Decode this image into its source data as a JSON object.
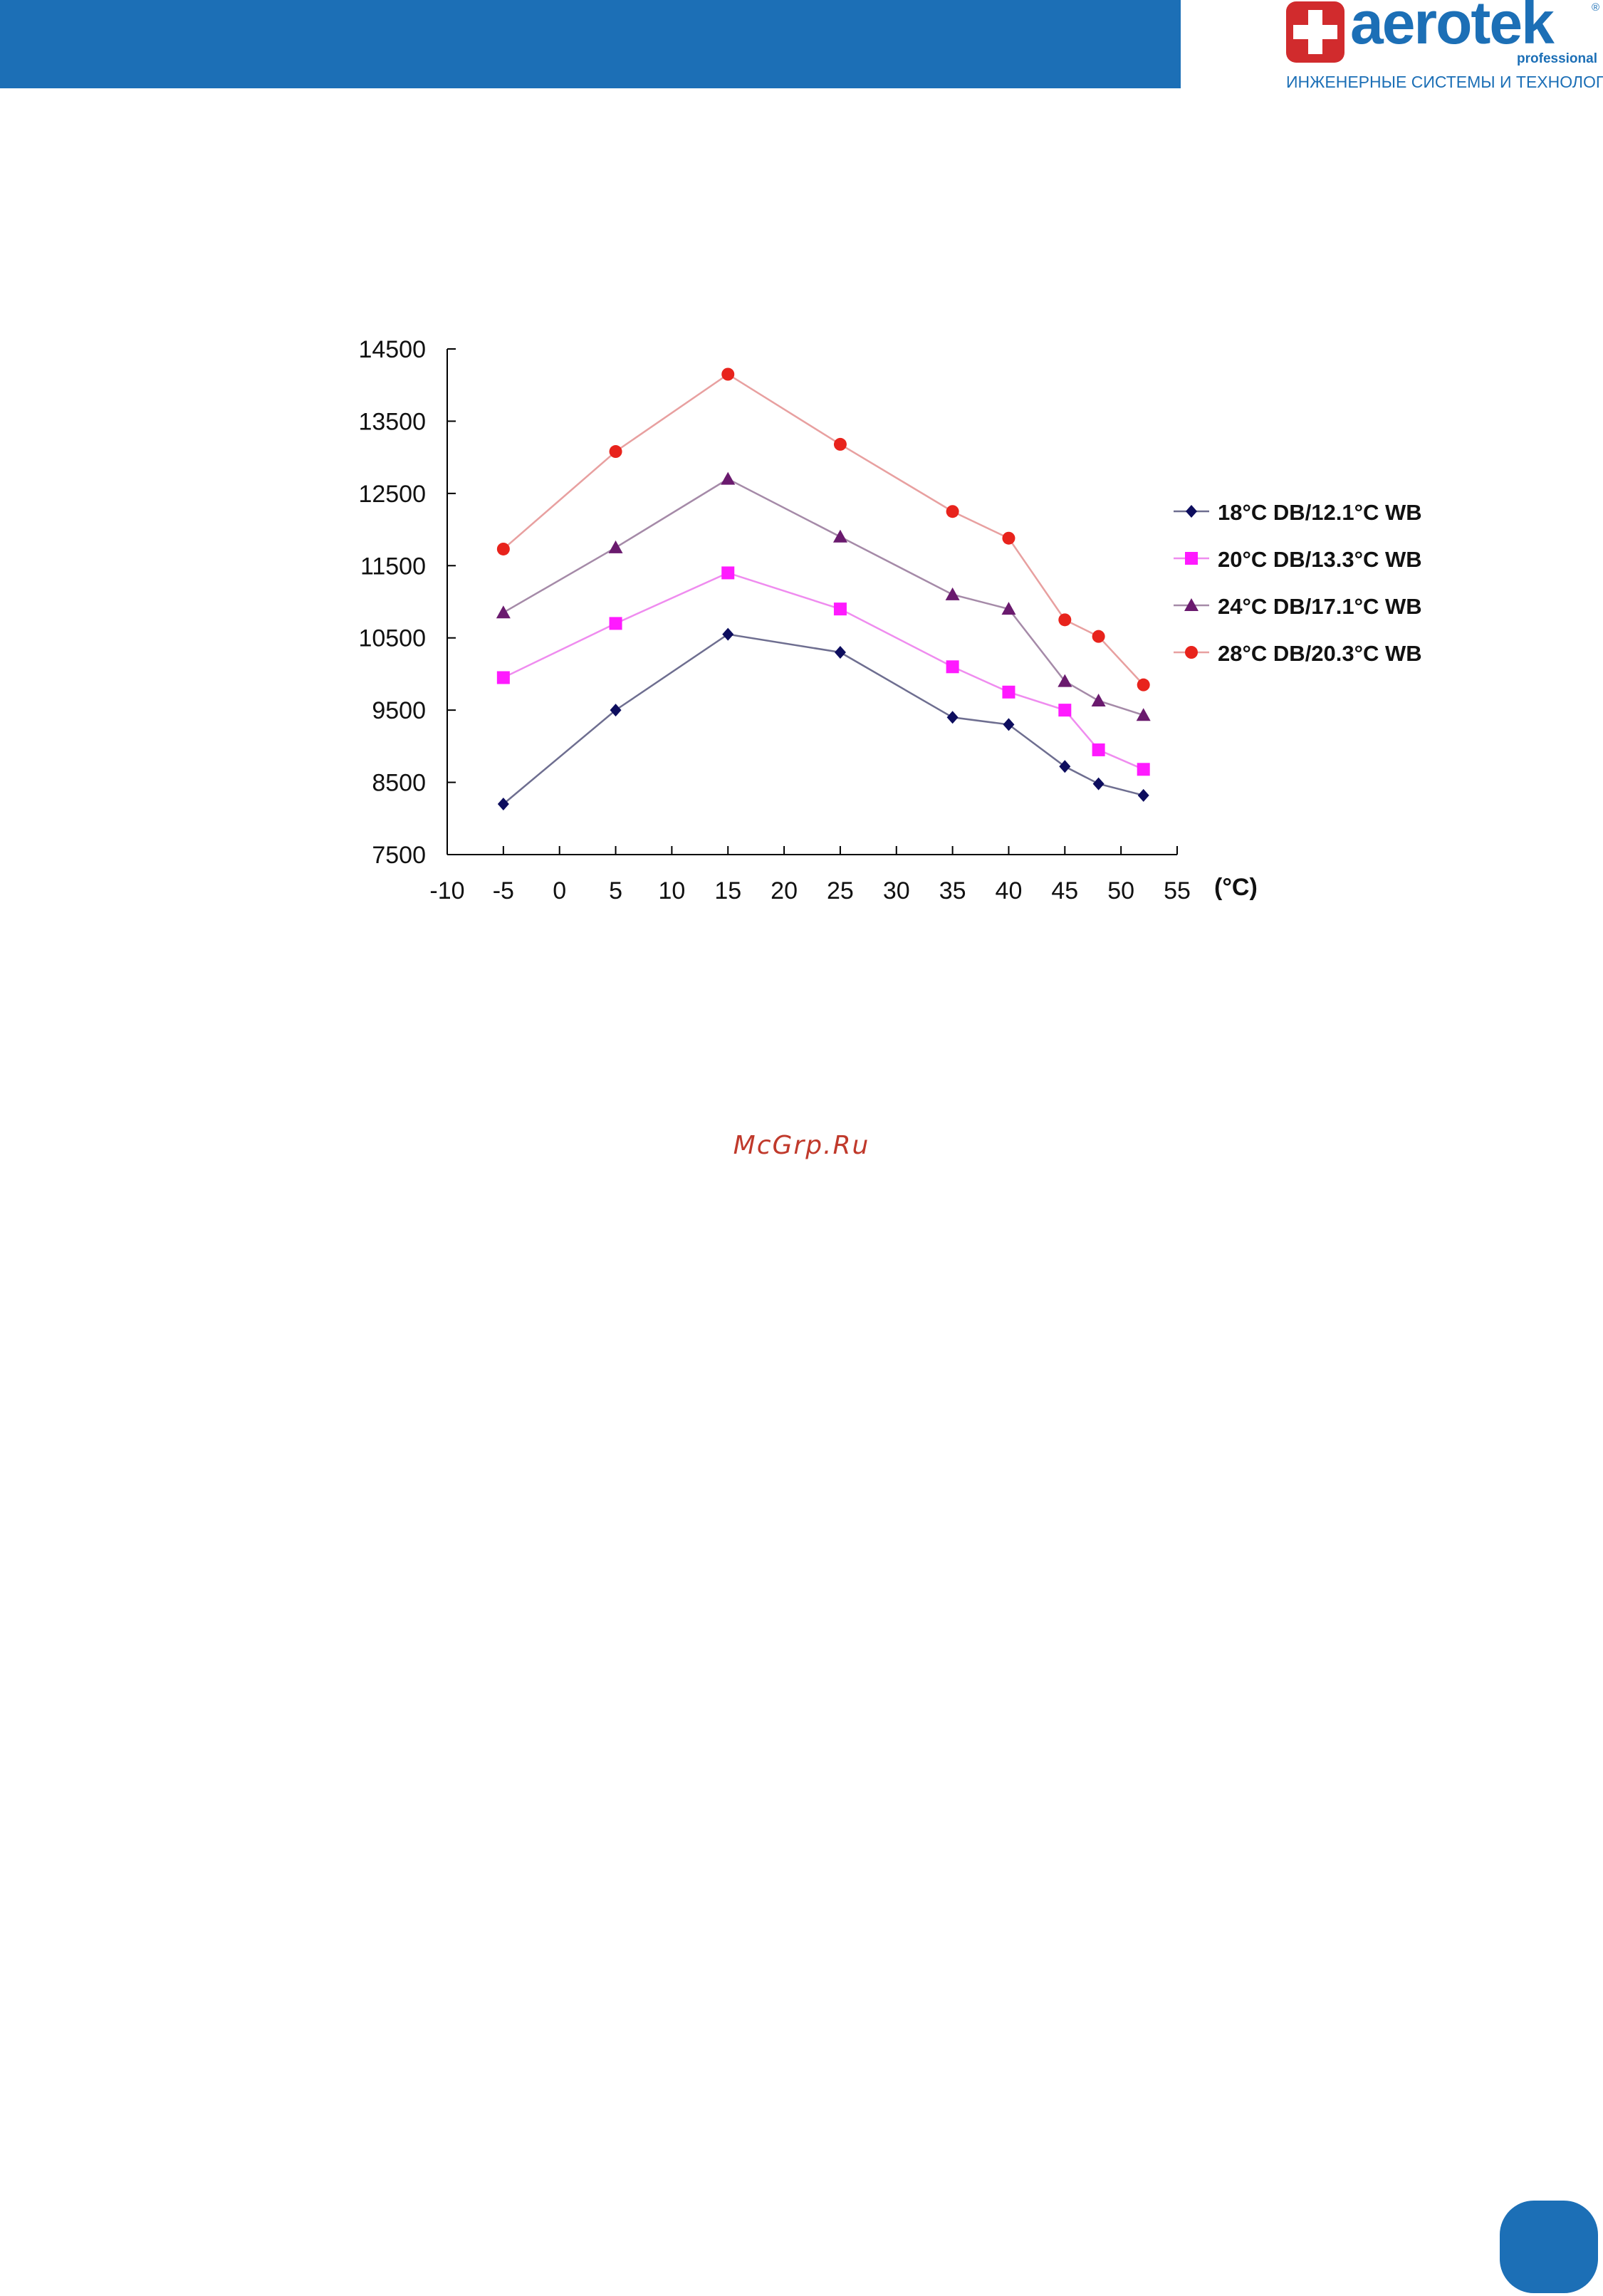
{
  "header": {
    "logo_text": "aerotek",
    "logo_registered": "®",
    "logo_sub": "professional",
    "tagline": "ИНЖЕНЕРНЫЕ СИСТЕМЫ И ТЕХНОЛОГИИ",
    "bar_color": "#1c6fb6",
    "brand_red": "#d12b2d"
  },
  "watermark": "McGrp.Ru",
  "chart_data": {
    "type": "line",
    "title": "",
    "xlabel": "(°C)",
    "ylabel": "",
    "xlim": [
      -10,
      55
    ],
    "ylim": [
      7500,
      14500
    ],
    "x_ticks": [
      -10,
      -5,
      0,
      5,
      10,
      15,
      20,
      25,
      30,
      35,
      40,
      45,
      50,
      55
    ],
    "y_ticks": [
      7500,
      8500,
      9500,
      10500,
      11500,
      12500,
      13500,
      14500
    ],
    "legend_position": "right",
    "grid": false,
    "series": [
      {
        "name": "18°C DB/12.1°C WB",
        "color": "#0d0d5e",
        "line_color": "#6e6e90",
        "marker": "diamond",
        "points": [
          [
            -5,
            8200
          ],
          [
            5,
            9500
          ],
          [
            15,
            10550
          ],
          [
            25,
            10300
          ],
          [
            35,
            9400
          ],
          [
            40,
            9300
          ],
          [
            45,
            8720
          ],
          [
            48,
            8480
          ],
          [
            52,
            8320
          ]
        ]
      },
      {
        "name": "20°C DB/13.3°C WB",
        "color": "#ff1aff",
        "line_color": "#ef8cef",
        "marker": "square",
        "points": [
          [
            -5,
            9950
          ],
          [
            5,
            10700
          ],
          [
            15,
            11400
          ],
          [
            25,
            10900
          ],
          [
            35,
            10100
          ],
          [
            40,
            9750
          ],
          [
            45,
            9500
          ],
          [
            48,
            8950
          ],
          [
            52,
            8680
          ]
        ]
      },
      {
        "name": "24°C DB/17.1°C WB",
        "color": "#6a1a6e",
        "line_color": "#a58aa8",
        "marker": "triangle",
        "points": [
          [
            -5,
            10850
          ],
          [
            5,
            11750
          ],
          [
            15,
            12700
          ],
          [
            25,
            11900
          ],
          [
            35,
            11100
          ],
          [
            40,
            10900
          ],
          [
            45,
            9900
          ],
          [
            48,
            9630
          ],
          [
            52,
            9430
          ]
        ]
      },
      {
        "name": "28°C DB/20.3°C WB",
        "color": "#e8231c",
        "line_color": "#e8a0a0",
        "marker": "circle",
        "points": [
          [
            -5,
            11730
          ],
          [
            5,
            13080
          ],
          [
            15,
            14150
          ],
          [
            25,
            13180
          ],
          [
            35,
            12250
          ],
          [
            40,
            11880
          ],
          [
            45,
            10750
          ],
          [
            48,
            10520
          ],
          [
            52,
            9850
          ]
        ]
      }
    ]
  }
}
